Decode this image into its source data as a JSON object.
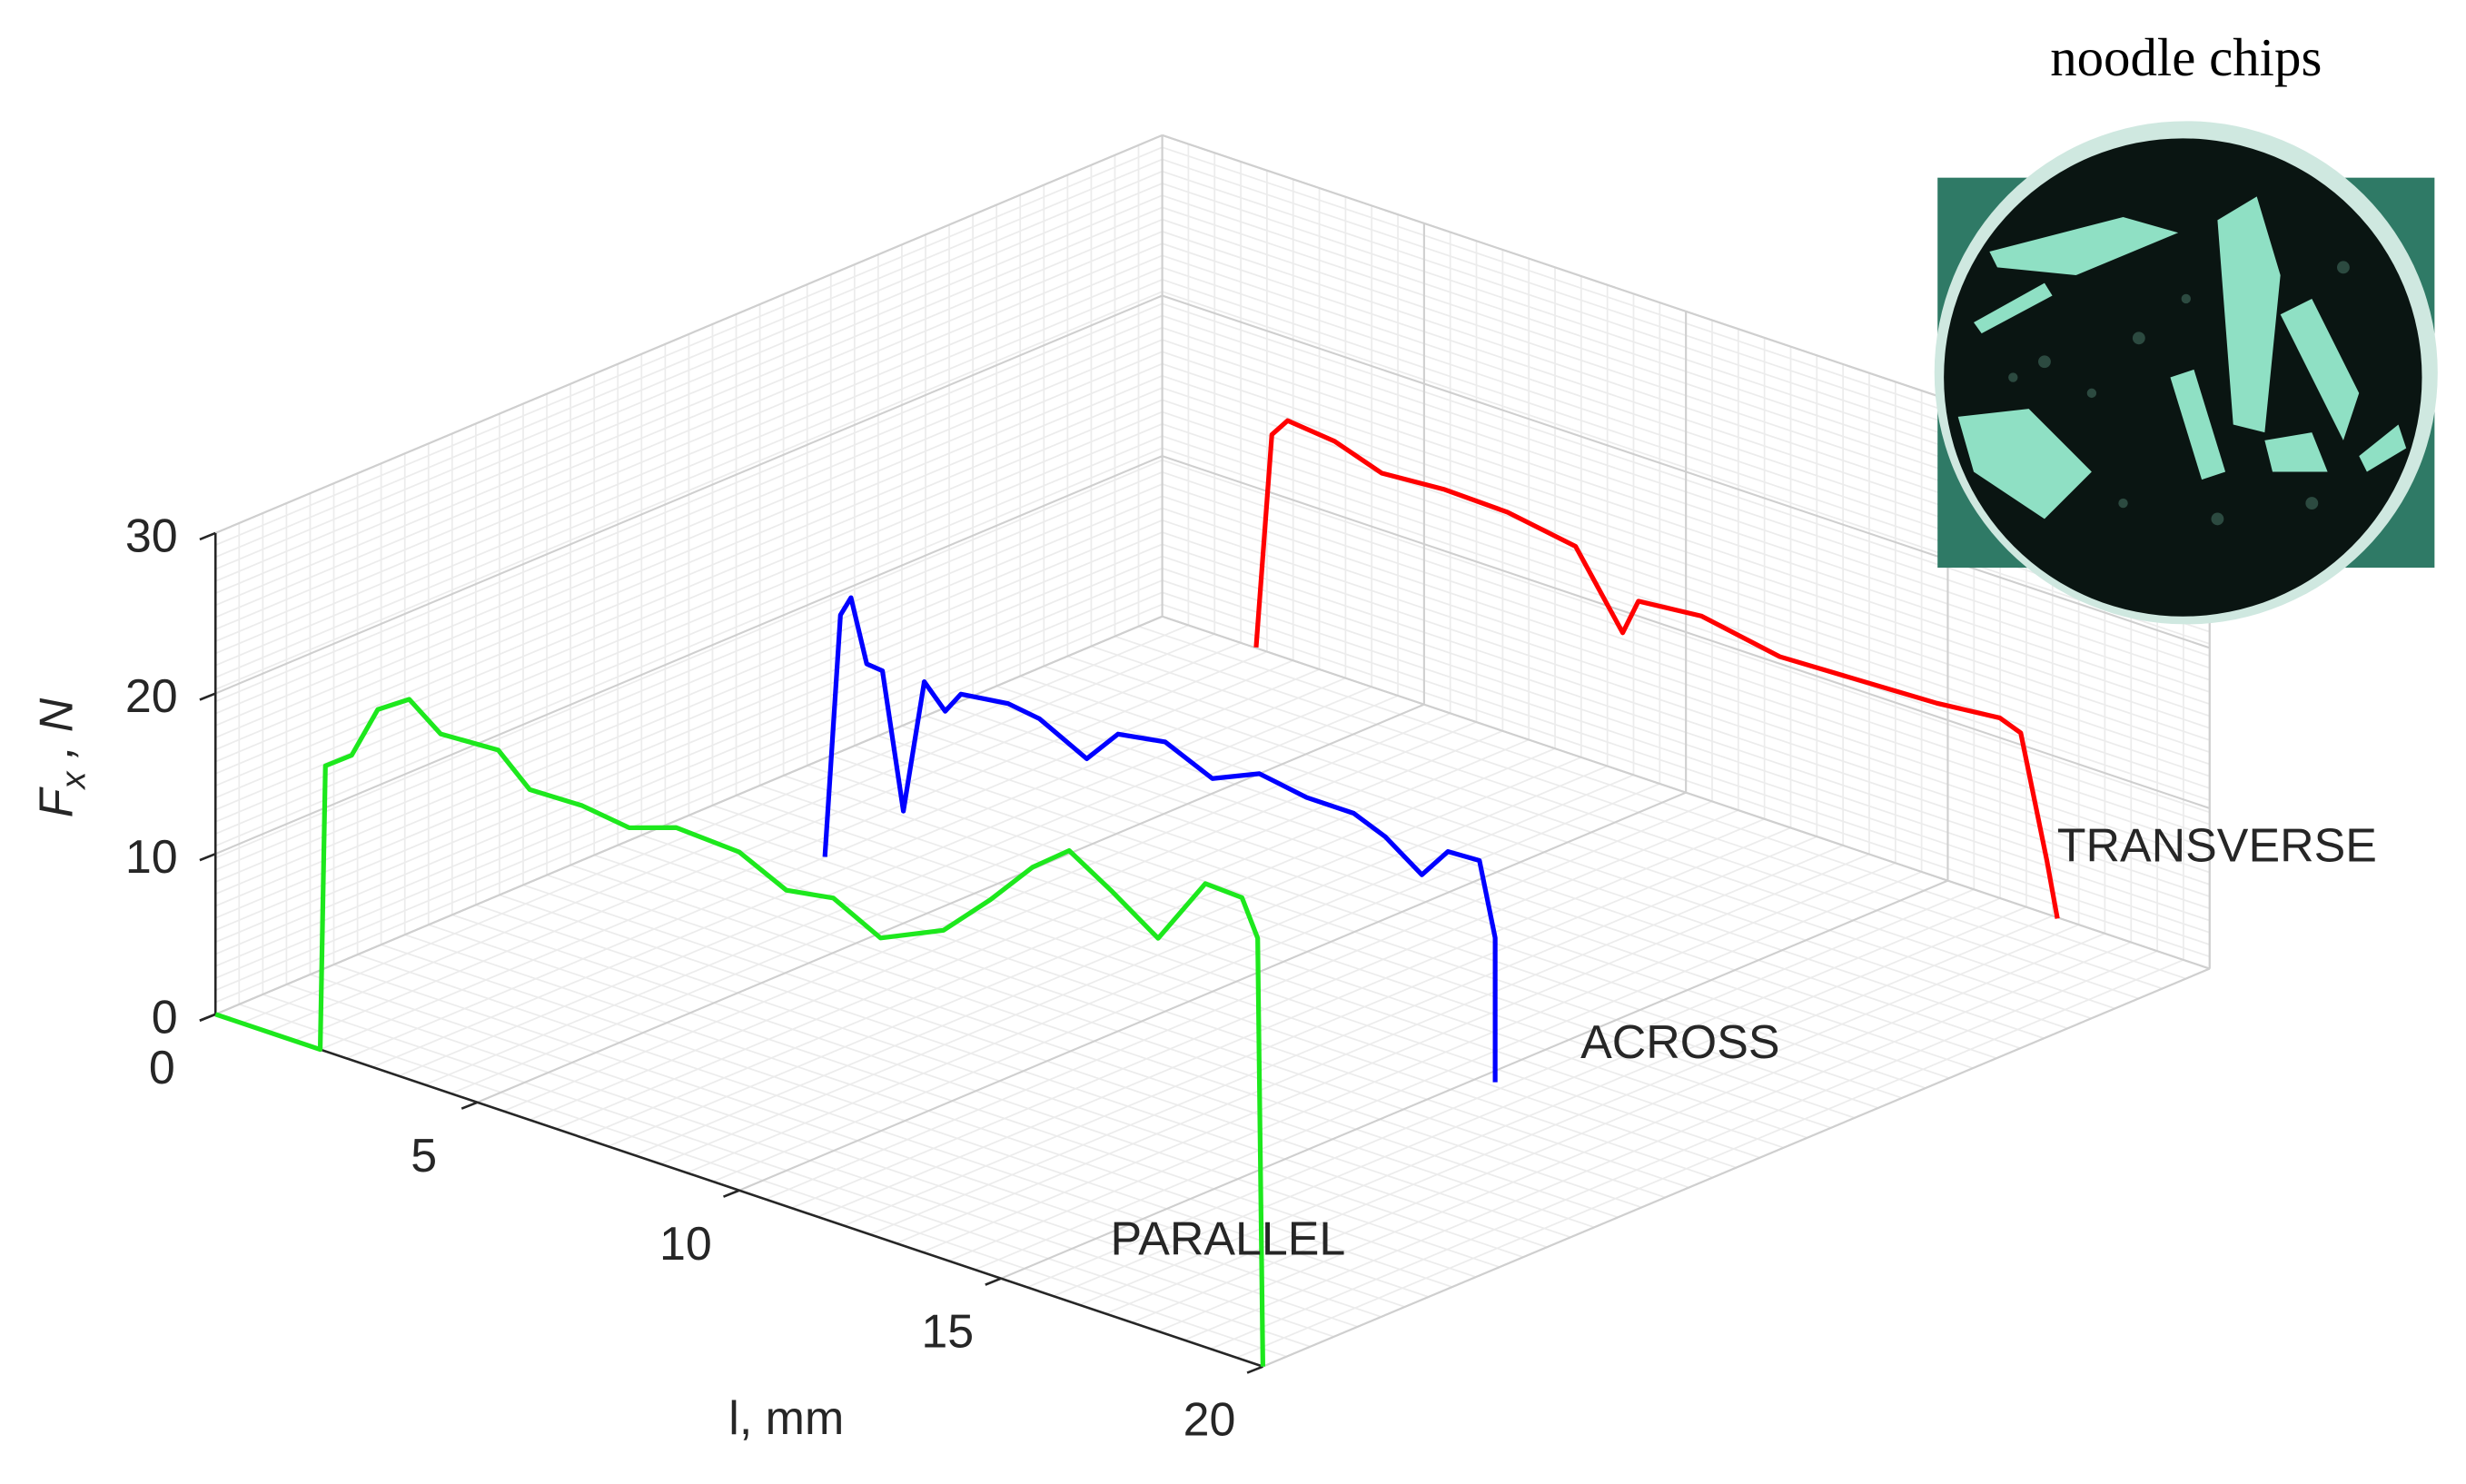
{
  "chart_data": {
    "type": "line3d",
    "xlabel": "l, mm",
    "ylabel": {
      "main": "F",
      "sub": "x",
      "rest": " , N"
    },
    "xlim": [
      0,
      20
    ],
    "xticks": [
      0,
      5,
      10,
      15,
      20
    ],
    "ylim": [
      0,
      30
    ],
    "yticks": [
      0,
      10,
      20,
      30
    ],
    "grid": true,
    "series": [
      {
        "name": "PARALLEL",
        "color": "#1de81d",
        "x": [
          0,
          2.0,
          2.1,
          2.6,
          3.1,
          3.7,
          4.3,
          5.4,
          6.0,
          7.0,
          7.9,
          8.8,
          10.0,
          10.9,
          11.8,
          12.7,
          13.9,
          14.8,
          15.6,
          16.3,
          17.1,
          18.0,
          18.9,
          19.6,
          19.9,
          20.0
        ],
        "values": [
          0,
          0,
          17.8,
          19.0,
          22.4,
          23.7,
          22.2,
          22.4,
          20.6,
          20.7,
          20.3,
          21.3,
          21.1,
          19.7,
          20.2,
          18.7,
          20.5,
          23.4,
          26.3,
          28.1,
          26.5,
          24.5,
          28.9,
          28.8,
          26.6,
          0
        ]
      },
      {
        "name": "ACROSS",
        "color": "#0000ff",
        "x": [
          3.5,
          3.8,
          4.0,
          4.3,
          4.6,
          5.0,
          5.4,
          5.8,
          6.1,
          7.0,
          7.6,
          8.5,
          9.1,
          10.0,
          10.9,
          11.8,
          12.7,
          13.6,
          14.2,
          14.9,
          15.4,
          16.0,
          16.3,
          16.3
        ],
        "values": [
          2.5,
          17.9,
          19.2,
          15.4,
          15.3,
          7.0,
          15.5,
          14.1,
          15.5,
          15.9,
          15.6,
          14.1,
          16.3,
          16.8,
          15.5,
          16.8,
          16.3,
          16.3,
          15.5,
          13.9,
          15.9,
          16.0,
          11.5,
          2.5
        ]
      },
      {
        "name": "TRANSVERSE",
        "color": "#ff0000",
        "x": [
          3.6,
          3.9,
          4.2,
          5.1,
          6.0,
          7.2,
          8.4,
          9.7,
          10.6,
          10.9,
          12.1,
          13.6,
          15.1,
          16.6,
          17.8,
          18.2,
          18.7,
          18.9
        ],
        "values": [
          4.5,
          18.1,
          19.3,
          19.0,
          18.0,
          18.3,
          18.2,
          17.5,
          13.1,
          15.4,
          15.8,
          14.9,
          15.1,
          15.3,
          15.7,
          15.2,
          7.8,
          4.4
        ]
      }
    ]
  },
  "inset": {
    "caption": "noodle chips"
  }
}
